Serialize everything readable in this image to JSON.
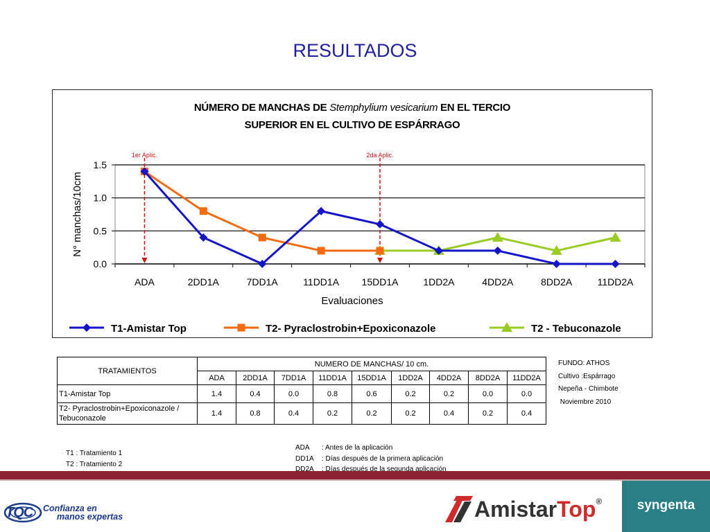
{
  "page": {
    "title": "RESULTADOS"
  },
  "chart_data": {
    "type": "line",
    "title_pre": "NÚMERO DE MANCHAS DE ",
    "title_italic": "Stemphylium vesicarium",
    "title_post": "  EN EL TERCIO",
    "title_line2": "SUPERIOR  EN EL CULTIVO DE ESPÁRRAGO",
    "xlabel": "Evaluaciones",
    "ylabel": "N° manchas/10cm",
    "categories": [
      "ADA",
      "2DD1A",
      "7DD1A",
      "11DD1A",
      "15DD1A",
      "1DD2A",
      "4DD2A",
      "8DD2A",
      "11DD2A"
    ],
    "ylim": [
      0,
      1.5
    ],
    "yticks": [
      "0.0",
      "0.5",
      "1.0",
      "1.5"
    ],
    "grid": true,
    "legend_position": "bottom",
    "series": [
      {
        "name": "T1-Amistar Top",
        "color": "#1515c8",
        "marker": "diamond",
        "values": [
          1.4,
          0.4,
          0.0,
          0.8,
          0.6,
          0.2,
          0.2,
          0.0,
          0.0
        ]
      },
      {
        "name": "T2- Pyraclostrobin+Epoxiconazole",
        "color": "#f26b10",
        "marker": "square",
        "values": [
          1.4,
          0.8,
          0.4,
          0.2,
          0.2,
          null,
          null,
          null,
          null
        ]
      },
      {
        "name": "T2 - Tebuconazole",
        "color": "#99cc22",
        "marker": "triangle",
        "values": [
          null,
          null,
          null,
          null,
          0.2,
          0.2,
          0.4,
          0.2,
          0.4
        ]
      }
    ],
    "annotations": [
      {
        "label": "1er Aplic.",
        "category_index": 0,
        "color": "#cc1010"
      },
      {
        "label": "2da Aplic.",
        "category_index": 4,
        "color": "#cc1010"
      }
    ]
  },
  "table": {
    "header_treatments": "TRATAMIENTOS",
    "header_group": "NUMERO DE MANCHAS/ 10 cm.",
    "columns": [
      "ADA",
      "2DD1A",
      "7DD1A",
      "11DD1A",
      "15DD1A",
      "1DD2A",
      "4DD2A",
      "8DD2A",
      "11DD2A"
    ],
    "rows": [
      {
        "label": "T1-Amistar Top",
        "label2": "",
        "values": [
          "1.4",
          "0.4",
          "0.0",
          "0.8",
          "0.6",
          "0.2",
          "0.2",
          "0.0",
          "0.0"
        ]
      },
      {
        "label": "T2- Pyraclostrobin+Epoxiconazole /",
        "label2": "Tebuconazole",
        "values": [
          "1.4",
          "0.8",
          "0.4",
          "0.2",
          "0.2",
          "0.2",
          "0.4",
          "0.2",
          "0.4"
        ]
      }
    ]
  },
  "info": {
    "lines": [
      "FUNDO:  ATHOS",
      "Cultivo :Espárrago",
      "Nepeña - Chimbote",
      " Noviembre 2010"
    ]
  },
  "notes": {
    "treatments": [
      "T1 : Tratamiento 1",
      "T2 : Tratamiento 2"
    ],
    "abbreviations": [
      {
        "code": "ADA",
        "desc": ": Antes de la aplicación"
      },
      {
        "code": "DD1A",
        "desc": ": Días después de la primera  aplicación"
      },
      {
        "code": "DD2A",
        "desc": ": Días después de la segunda aplicación"
      }
    ]
  },
  "footer": {
    "tqc_logo_text": "TQC",
    "tagline_1": "Confianza en",
    "tagline_2": "manos expertas",
    "amistar_text": "Amistar",
    "top_text": "Top",
    "registered": "®",
    "syngenta_text": "syngenta"
  }
}
